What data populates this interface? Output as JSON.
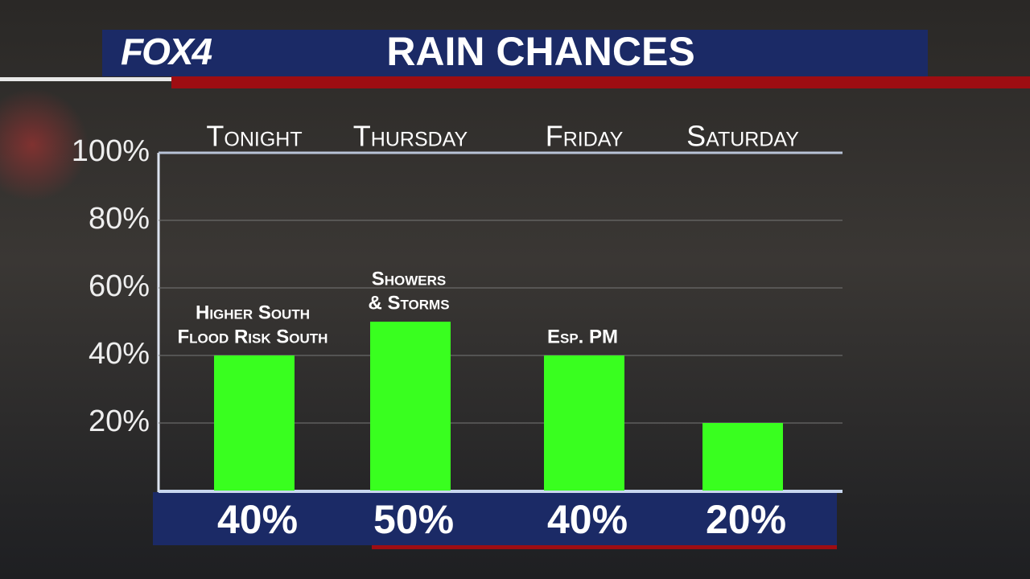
{
  "logo": "FOX4",
  "chart_data": {
    "type": "bar",
    "title": "RAIN CHANCES",
    "categories": [
      "Tonight",
      "Thursday",
      "Friday",
      "Saturday"
    ],
    "values": [
      40,
      50,
      40,
      20
    ],
    "value_labels": [
      "40%",
      "50%",
      "40%",
      "20%"
    ],
    "annotations": [
      [
        "Higher South",
        "Flood Risk South"
      ],
      [
        "Showers",
        "& Storms"
      ],
      [
        "Esp. PM"
      ],
      null
    ],
    "color": "#39ff1f",
    "ylim": [
      0,
      100
    ],
    "yticks": [
      {
        "value": 20,
        "label": "20%"
      },
      {
        "value": 40,
        "label": "40%"
      },
      {
        "value": 60,
        "label": "60%"
      },
      {
        "value": 80,
        "label": "80%"
      },
      {
        "value": 100,
        "label": "100%"
      }
    ],
    "grid": true
  }
}
